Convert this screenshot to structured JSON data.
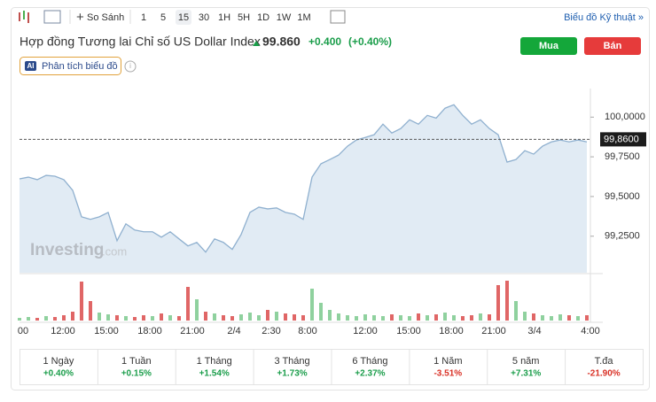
{
  "toolbar": {
    "compare": "So Sánh",
    "intervals": [
      "1",
      "5",
      "15",
      "30",
      "1H",
      "5H",
      "1D",
      "1W",
      "1M"
    ],
    "selected": 2,
    "technical": "Biểu đồ Kỹ thuật »"
  },
  "header": {
    "title": "Hợp đồng Tương lai Chỉ số US Dollar Index",
    "price": "99.860",
    "change": "+0.400",
    "change_pct": "(+0.40%)",
    "buy": "Mua",
    "sell": "Bán",
    "ai_badge": "AI",
    "ai_label": "Phân tích biểu đồ"
  },
  "chart_data": {
    "type": "area",
    "watermark": "Investing",
    "watermark_suffix": ".com",
    "color": "#8fb0cf",
    "fill": "#e1ebf4",
    "x_labels": [
      "00",
      "12:00",
      "15:00",
      "18:00",
      "21:00",
      "2/4",
      "2:30",
      "8:00",
      "12:00",
      "15:00",
      "18:00",
      "21:00",
      "3/4",
      "4:00"
    ],
    "values": [
      99.611,
      99.622,
      99.606,
      99.633,
      99.628,
      99.606,
      99.539,
      99.372,
      99.356,
      99.372,
      99.4,
      99.222,
      99.328,
      99.289,
      99.278,
      99.278,
      99.244,
      99.278,
      99.233,
      99.189,
      99.211,
      99.15,
      99.233,
      99.211,
      99.167,
      99.261,
      99.4,
      99.433,
      99.422,
      99.428,
      99.4,
      99.389,
      99.356,
      99.622,
      99.706,
      99.733,
      99.761,
      99.817,
      99.856,
      99.872,
      99.889,
      99.956,
      99.9,
      99.928,
      99.983,
      99.956,
      100.011,
      99.994,
      100.056,
      100.078,
      100.011,
      99.956,
      99.983,
      99.928,
      99.889,
      99.717,
      99.733,
      99.789,
      99.767,
      99.817,
      99.844,
      99.856,
      99.844,
      99.856,
      99.844
    ],
    "ylim": [
      99.02,
      100.18
    ],
    "yticks": [
      {
        "value": 100,
        "label": "100,0000"
      },
      {
        "value": 99.75,
        "label": "99,7500"
      },
      {
        "value": 99.5,
        "label": "99,5000"
      },
      {
        "value": 99.25,
        "label": "99,2500"
      }
    ],
    "last": {
      "value": 99.86,
      "label": "99,8600"
    },
    "volume": {
      "values": [
        3,
        4,
        3,
        5,
        4,
        6,
        10,
        44,
        22,
        9,
        7,
        6,
        5,
        4,
        6,
        5,
        8,
        6,
        5,
        38,
        24,
        10,
        8,
        6,
        5,
        7,
        9,
        6,
        12,
        10,
        8,
        7,
        6,
        36,
        20,
        12,
        8,
        6,
        5,
        7,
        6,
        5,
        7,
        6,
        5,
        8,
        6,
        7,
        9,
        6,
        5,
        6,
        8,
        7,
        40,
        45,
        22,
        10,
        8,
        6,
        5,
        7,
        6,
        5,
        6
      ],
      "ylim": [
        0,
        50
      ],
      "up_color": "#8fd19e",
      "down_color": "#e06666"
    }
  },
  "periods": [
    {
      "label": "1 Ngày",
      "change": "+0.40%"
    },
    {
      "label": "1 Tuần",
      "change": "+0.15%"
    },
    {
      "label": "1 Tháng",
      "change": "+1.54%"
    },
    {
      "label": "3 Tháng",
      "change": "+1.73%"
    },
    {
      "label": "6 Tháng",
      "change": "+2.37%"
    },
    {
      "label": "1 Năm",
      "change": "-3.51%"
    },
    {
      "label": "5 năm",
      "change": "+7.31%"
    },
    {
      "label": "T.đa",
      "change": "-21.90%"
    }
  ]
}
